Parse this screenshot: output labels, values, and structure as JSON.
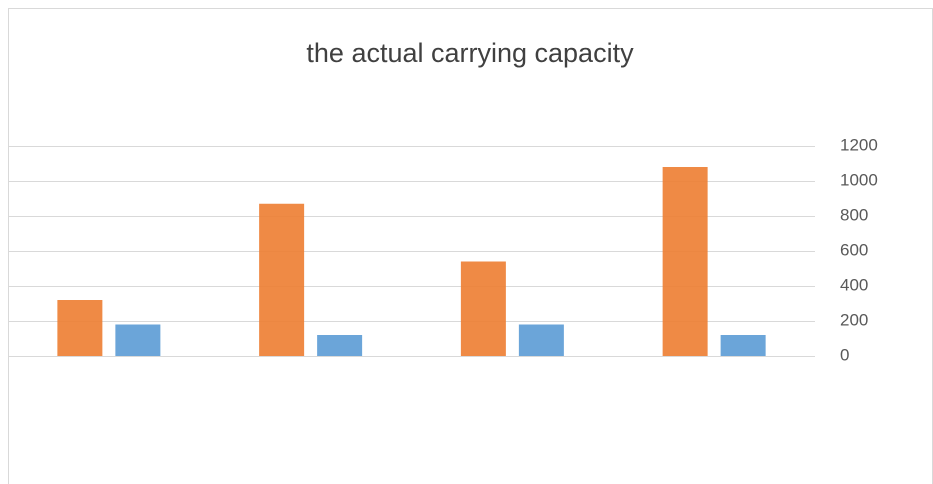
{
  "chart_data": {
    "type": "bar",
    "title": "the actual carrying capacity",
    "categories": [
      null,
      null,
      null,
      null
    ],
    "series": [
      {
        "color": "#ed7d31",
        "values": [
          320,
          870,
          540,
          1080
        ]
      },
      {
        "color": "#5b9bd5",
        "values": [
          180,
          120,
          180,
          120
        ]
      }
    ],
    "ylim": [
      0,
      1200
    ],
    "yticks": [
      0,
      200,
      400,
      600,
      800,
      1000,
      1200
    ],
    "grid": true,
    "y_axis_side": "right"
  }
}
